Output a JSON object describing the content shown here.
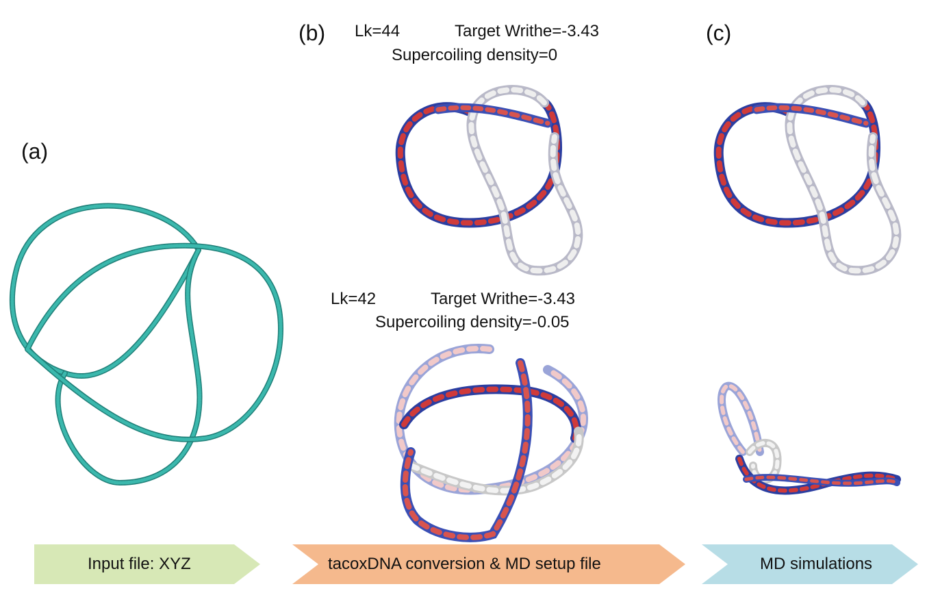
{
  "panels": {
    "a": {
      "label": "(a)"
    },
    "b": {
      "label": "(b)",
      "top": {
        "lk": "Lk=44",
        "writhe": "Target Writhe=-3.43",
        "density": "Supercoiling density=0"
      },
      "bottom": {
        "lk": "Lk=42",
        "writhe": "Target Writhe=-3.43",
        "density": "Supercoiling density=-0.05"
      }
    },
    "c": {
      "label": "(c)"
    }
  },
  "steps": [
    {
      "label": "Input file: XYZ",
      "color": "#d7e8b6"
    },
    {
      "label": "tacoxDNA conversion & MD setup file",
      "color": "#f5b98d"
    },
    {
      "label": "MD simulations",
      "color": "#b7dde6"
    }
  ],
  "colors": {
    "knot_teal": "#2aa39a",
    "dna_red": "#cf3a3a",
    "dna_blue": "#2b3ea1",
    "dna_white": "#e6e6e6"
  }
}
